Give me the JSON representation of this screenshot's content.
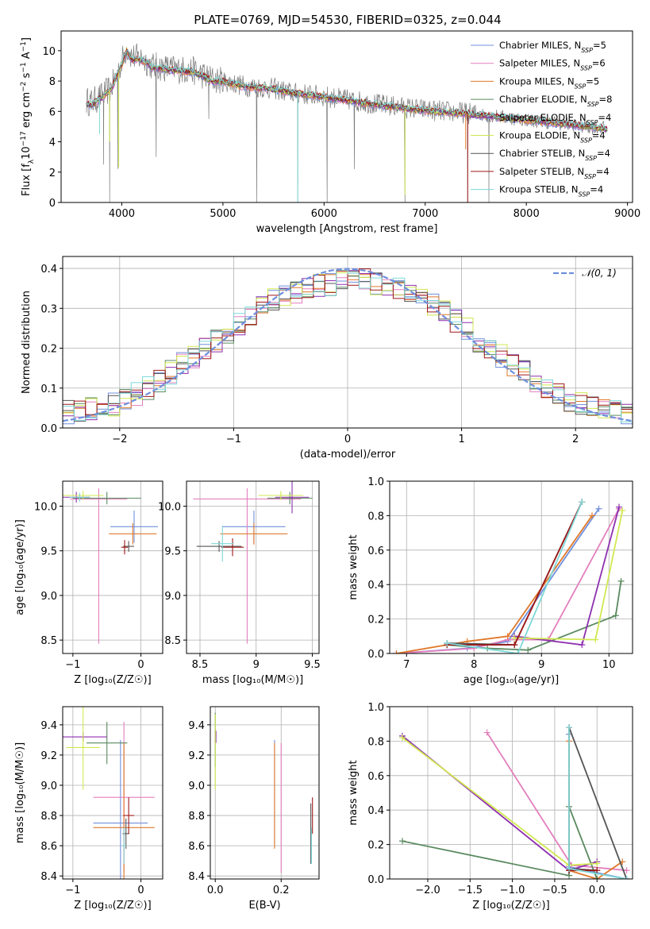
{
  "figure": {
    "title": "PLATE=0769, MJD=54530, FIBERID=0325, z=0.044"
  },
  "colors": {
    "Chabrier MILES": "#6f8fdc",
    "Salpeter MILES": "#e37fbd",
    "Kroupa MILES": "#e0782a",
    "Chabrier ELODIE": "#5a8a5f",
    "Salpeter ELODIE": "#8e2fb0",
    "Kroupa ELODIE": "#d1e850",
    "Chabrier STELIB": "#555555",
    "Salpeter STELIB": "#a01818",
    "Kroupa STELIB": "#7ed8d8",
    "normal": "#6f8fdc"
  },
  "chart_data": [
    {
      "id": "spectrum",
      "type": "line",
      "xlabel": "wavelength [Angstrom, rest frame]",
      "ylabel_parts": [
        "Flux [f",
        "λ",
        "10",
        "−17",
        " erg cm",
        "−2",
        " s",
        "−1",
        " A",
        "−1",
        "]"
      ],
      "xlim": [
        3400,
        9050
      ],
      "ylim": [
        0,
        11.3
      ],
      "xticks": [
        4000,
        5000,
        6000,
        7000,
        8000,
        9000
      ],
      "yticks": [
        0,
        2,
        4,
        6,
        8,
        10
      ],
      "legend_location": "top-right",
      "legend": [
        {
          "base": "Chabrier MILES, N",
          "sub": "SSP",
          "tail": "=5"
        },
        {
          "base": "Salpeter MILES, N",
          "sub": "SSP",
          "tail": "=6"
        },
        {
          "base": "Kroupa MILES, N",
          "sub": "SSP",
          "tail": "=5"
        },
        {
          "base": "Chabrier ELODIE, N",
          "sub": "SSP",
          "tail": "=8"
        },
        {
          "base": "Salpeter ELODIE, N",
          "sub": "SSP",
          "tail": "=4"
        },
        {
          "base": "Kroupa ELODIE, N",
          "sub": "SSP",
          "tail": "=4"
        },
        {
          "base": "Chabrier STELIB, N",
          "sub": "SSP",
          "tail": "=4"
        },
        {
          "base": "Salpeter STELIB, N",
          "sub": "SSP",
          "tail": "=4"
        },
        {
          "base": "Kroupa STELIB, N",
          "sub": "SSP",
          "tail": "=4"
        }
      ],
      "data_trend": {
        "x": [
          3650,
          3700,
          3800,
          3900,
          4000,
          4050,
          4100,
          4200,
          4300,
          4500,
          4700,
          4800,
          4900,
          5000,
          5200,
          5500,
          5700,
          6000,
          6300,
          6600,
          7000,
          7400,
          7800,
          8200,
          8600,
          8800
        ],
        "y": [
          6.7,
          6.6,
          7.0,
          7.6,
          9.3,
          10.2,
          9.6,
          9.5,
          9.0,
          8.8,
          8.7,
          8.4,
          8.1,
          8.0,
          7.7,
          7.5,
          7.2,
          7.0,
          6.7,
          6.4,
          6.1,
          5.9,
          5.6,
          5.3,
          5.0,
          4.9
        ]
      },
      "data_drops": [
        {
          "x": 3820,
          "y": 2.5
        },
        {
          "x": 3880,
          "y": 0.0
        },
        {
          "x": 3960,
          "y": 2.2
        },
        {
          "x": 4340,
          "y": 3.0
        },
        {
          "x": 4860,
          "y": 5.5
        },
        {
          "x": 5335,
          "y": 0.0
        },
        {
          "x": 5740,
          "y": 0.0
        },
        {
          "x": 6030,
          "y": 0.0
        },
        {
          "x": 6300,
          "y": 2.2
        },
        {
          "x": 6800,
          "y": 0.0
        },
        {
          "x": 7420,
          "y": 0.0
        },
        {
          "x": 7630,
          "y": 0.0
        }
      ],
      "model_trend": {
        "x": [
          3650,
          3700,
          3800,
          3900,
          4000,
          4050,
          4100,
          4200,
          4300,
          4500,
          4700,
          4800,
          4900,
          5000,
          5200,
          5500,
          5700,
          6000,
          6300,
          6600,
          7000,
          7400,
          7800,
          8200,
          8600,
          8800
        ],
        "y": [
          6.5,
          6.4,
          6.9,
          7.5,
          9.1,
          10.0,
          9.4,
          9.4,
          8.9,
          8.7,
          8.6,
          8.3,
          8.0,
          7.95,
          7.65,
          7.45,
          7.2,
          6.95,
          6.65,
          6.35,
          6.05,
          5.85,
          5.55,
          5.3,
          5.0,
          4.85
        ]
      }
    },
    {
      "id": "residuals",
      "type": "line",
      "xlabel": "(data-model)/error",
      "ylabel": "Normed distribution",
      "xlim": [
        -2.5,
        2.5
      ],
      "ylim": [
        0,
        0.43
      ],
      "xticks": [
        -2,
        -1,
        0,
        1,
        2
      ],
      "yticks": [
        0.0,
        0.1,
        0.2,
        0.3,
        0.4
      ],
      "grid": true,
      "legend_location": "top-right",
      "normal_label": "𝒩(0, 1)",
      "bin_start": -2.5,
      "bin_width": 0.1,
      "hist_base": [
        0.04,
        0.045,
        0.05,
        0.055,
        0.06,
        0.07,
        0.085,
        0.1,
        0.12,
        0.14,
        0.16,
        0.18,
        0.2,
        0.22,
        0.24,
        0.26,
        0.28,
        0.3,
        0.32,
        0.33,
        0.34,
        0.35,
        0.36,
        0.36,
        0.37,
        0.37,
        0.37,
        0.36,
        0.36,
        0.35,
        0.34,
        0.33,
        0.31,
        0.29,
        0.27,
        0.25,
        0.22,
        0.2,
        0.18,
        0.16,
        0.14,
        0.12,
        0.1,
        0.085,
        0.07,
        0.06,
        0.05,
        0.045,
        0.04,
        0.035
      ]
    },
    {
      "id": "age_vs_Z",
      "type": "scatter",
      "xlabel": "Z [log₁₀(Z/Z☉)]",
      "ylabel": "age  [log₁₀(age/yr)]",
      "xlim": [
        -1.15,
        0.32
      ],
      "ylim": [
        8.35,
        10.28
      ],
      "xticks": [
        -1,
        0
      ],
      "yticks": [
        8.5,
        9.0,
        9.5,
        10.0
      ],
      "grid": true,
      "points": [
        {
          "series": "Chabrier MILES",
          "x": -0.1,
          "y": 9.77,
          "xerr": 0.35,
          "yerr": 0.18
        },
        {
          "series": "Salpeter MILES",
          "x": -0.62,
          "y": 10.08,
          "xerr": 0.42,
          "yerr": [
            0.12,
            1.62
          ]
        },
        {
          "series": "Kroupa MILES",
          "x": -0.12,
          "y": 9.69,
          "xerr": 0.35,
          "yerr": 0.12
        },
        {
          "series": "Chabrier ELODIE",
          "x": -0.5,
          "y": 10.09,
          "xerr": 0.5,
          "yerr": 0.07
        },
        {
          "series": "Salpeter ELODIE",
          "x": -0.95,
          "y": 10.1,
          "xerr": 0.2,
          "yerr": 0.06
        },
        {
          "series": "Kroupa ELODIE",
          "x": -0.85,
          "y": 10.12,
          "xerr": 0.3,
          "yerr": 0.05
        },
        {
          "series": "Chabrier STELIB",
          "x": -0.18,
          "y": 9.55,
          "xerr": 0.08,
          "yerr": 0.06
        },
        {
          "series": "Salpeter STELIB",
          "x": -0.24,
          "y": 9.54,
          "xerr": 0.05,
          "yerr": 0.08
        },
        {
          "series": "Kroupa STELIB",
          "x": -0.9,
          "y": 10.1,
          "xerr": 0.15,
          "yerr": 0.05
        }
      ]
    },
    {
      "id": "age_vs_mass",
      "type": "scatter",
      "xlabel": "mass [log₁₀(M/M☉)]",
      "ylabel": "",
      "xlim": [
        8.38,
        9.56
      ],
      "ylim": [
        8.35,
        10.28
      ],
      "xticks": [
        8.5,
        9.0,
        9.5
      ],
      "yticks": [
        8.5,
        9.0,
        9.5,
        10.0
      ],
      "grid": true,
      "points": [
        {
          "series": "Chabrier MILES",
          "x": 8.98,
          "y": 9.77,
          "xerr": 0.28,
          "yerr": 0.18
        },
        {
          "series": "Salpeter MILES",
          "x": 8.92,
          "y": 10.08,
          "xerr": 0.48,
          "yerr": [
            0.12,
            1.62
          ]
        },
        {
          "series": "Kroupa MILES",
          "x": 8.98,
          "y": 9.69,
          "xerr": 0.3,
          "yerr": 0.12
        },
        {
          "series": "Chabrier ELODIE",
          "x": 9.3,
          "y": 10.09,
          "xerr": 0.2,
          "yerr": 0.07
        },
        {
          "series": "Salpeter ELODIE",
          "x": 9.32,
          "y": 10.1,
          "xerr": 0.15,
          "yerr": 0.18
        },
        {
          "series": "Kroupa ELODIE",
          "x": 9.22,
          "y": 10.12,
          "xerr": 0.2,
          "yerr": 0.05
        },
        {
          "series": "Chabrier STELIB",
          "x": 8.67,
          "y": 9.55,
          "xerr": 0.2,
          "yerr": 0.06
        },
        {
          "series": "Salpeter STELIB",
          "x": 8.79,
          "y": 9.54,
          "xerr": 0.1,
          "yerr": 0.1
        },
        {
          "series": "Kroupa STELIB",
          "x": 8.7,
          "y": 9.58,
          "xerr": 0.1,
          "yerr": 0.2
        }
      ]
    },
    {
      "id": "weight_vs_age",
      "type": "line",
      "xlabel": "age  [log₁₀(age/yr)]",
      "ylabel": "mass weight",
      "xlim": [
        6.75,
        10.35
      ],
      "ylim": [
        0,
        1
      ],
      "xticks": [
        7,
        8,
        9,
        10
      ],
      "yticks": [
        0.0,
        0.2,
        0.4,
        0.6,
        0.8,
        1.0
      ],
      "grid": true,
      "series": [
        {
          "name": "Chabrier MILES",
          "x": [
            6.85,
            7.9,
            8.5,
            9.85
          ],
          "y": [
            0.0,
            0.03,
            0.07,
            0.84
          ]
        },
        {
          "name": "Salpeter MILES",
          "x": [
            6.85,
            8.0,
            8.5,
            9.1,
            10.15
          ],
          "y": [
            0.0,
            0.03,
            0.08,
            0.08,
            0.84
          ]
        },
        {
          "name": "Kroupa MILES",
          "x": [
            6.85,
            7.9,
            8.5,
            9.75
          ],
          "y": [
            0.0,
            0.07,
            0.1,
            0.8
          ]
        },
        {
          "name": "Chabrier ELODIE",
          "x": [
            7.6,
            8.2,
            8.8,
            10.1,
            10.18
          ],
          "y": [
            0.05,
            0.03,
            0.02,
            0.22,
            0.42
          ]
        },
        {
          "name": "Salpeter ELODIE",
          "x": [
            8.6,
            9.6,
            10.15
          ],
          "y": [
            0.1,
            0.05,
            0.85
          ]
        },
        {
          "name": "Kroupa ELODIE",
          "x": [
            8.6,
            9.8,
            10.2
          ],
          "y": [
            0.09,
            0.08,
            0.83
          ]
        },
        {
          "name": "Chabrier STELIB",
          "x": [
            7.6,
            8.6,
            9.6
          ],
          "y": [
            0.06,
            0.05,
            0.88
          ]
        },
        {
          "name": "Salpeter STELIB",
          "x": [
            7.6,
            8.6,
            9.6
          ],
          "y": [
            0.05,
            0.05,
            0.88
          ]
        },
        {
          "name": "Kroupa STELIB",
          "x": [
            7.6,
            8.65,
            9.6
          ],
          "y": [
            0.06,
            0.0,
            0.88
          ]
        }
      ]
    },
    {
      "id": "mass_vs_Z",
      "type": "scatter",
      "xlabel": "Z [log₁₀(Z/Z☉)]",
      "ylabel": "mass [log₁₀(M/M☉)]",
      "xlim": [
        -1.15,
        0.32
      ],
      "ylim": [
        8.38,
        9.52
      ],
      "xticks": [
        -1,
        0
      ],
      "yticks": [
        8.4,
        8.6,
        8.8,
        9.0,
        9.2,
        9.4
      ],
      "grid": true,
      "points": [
        {
          "series": "Chabrier MILES",
          "x": -0.3,
          "y": 8.75,
          "xerr": 0.4,
          "yerr": 0.55
        },
        {
          "series": "Salpeter MILES",
          "x": -0.25,
          "y": 8.92,
          "xerr": 0.45,
          "yerr": 0.5
        },
        {
          "series": "Kroupa MILES",
          "x": -0.25,
          "y": 8.72,
          "xerr": 0.45,
          "yerr": 0.56
        },
        {
          "series": "Chabrier ELODIE",
          "x": -0.5,
          "y": 9.28,
          "xerr": 0.3,
          "yerr": 0.14
        },
        {
          "series": "Salpeter ELODIE",
          "x": -0.85,
          "y": 9.32,
          "xerr": 0.35,
          "yerr": 0.03
        },
        {
          "series": "Kroupa ELODIE",
          "x": -0.85,
          "y": 9.25,
          "xerr": 0.25,
          "yerr": 0.28
        },
        {
          "series": "Chabrier STELIB",
          "x": -0.22,
          "y": 8.68,
          "xerr": 0.05,
          "yerr": 0.1
        },
        {
          "series": "Salpeter STELIB",
          "x": -0.18,
          "y": 8.8,
          "xerr": 0.08,
          "yerr": 0.12
        },
        {
          "series": "Kroupa STELIB",
          "x": -0.25,
          "y": 8.6,
          "xerr": 0.03,
          "yerr": 0.12
        }
      ]
    },
    {
      "id": "mass_vs_EBV",
      "type": "scatter",
      "xlabel": "E(B-V)",
      "ylabel": "",
      "xlim": [
        -0.015,
        0.315
      ],
      "ylim": [
        8.38,
        9.52
      ],
      "xticks": [
        0.0,
        0.2
      ],
      "yticks": [
        8.4,
        8.6,
        8.8,
        9.0,
        9.2,
        9.4
      ],
      "grid": true,
      "points": [
        {
          "series": "Chabrier MILES",
          "x": 0.18,
          "y": 8.95,
          "xerr": 0.0,
          "yerr": 0.35
        },
        {
          "series": "Salpeter MILES",
          "x": 0.2,
          "y": 8.85,
          "xerr": 0.0,
          "yerr": 0.43
        },
        {
          "series": "Kroupa MILES",
          "x": 0.18,
          "y": 8.93,
          "xerr": 0.0,
          "yerr": 0.35
        },
        {
          "series": "Chabrier ELODIE",
          "x": 0.0,
          "y": 9.3,
          "xerr": 0.0,
          "yerr": 0.18
        },
        {
          "series": "Salpeter ELODIE",
          "x": 0.002,
          "y": 9.32,
          "xerr": 0.0,
          "yerr": 0.04
        },
        {
          "series": "Kroupa ELODIE",
          "x": 0.0,
          "y": 9.22,
          "xerr": 0.0,
          "yerr": 0.25
        },
        {
          "series": "Chabrier STELIB",
          "x": 0.29,
          "y": 8.68,
          "xerr": 0.0,
          "yerr": 0.2
        },
        {
          "series": "Salpeter STELIB",
          "x": 0.295,
          "y": 8.8,
          "xerr": 0.0,
          "yerr": 0.12
        },
        {
          "series": "Kroupa STELIB",
          "x": 0.292,
          "y": 8.6,
          "xerr": 0.0,
          "yerr": 0.12
        }
      ]
    },
    {
      "id": "weight_vs_Z",
      "type": "line",
      "xlabel": "Z [log₁₀(Z/Z☉)]",
      "ylabel": "mass weight",
      "xlim": [
        -2.45,
        0.42
      ],
      "ylim": [
        0,
        1
      ],
      "xticks": [
        -2.0,
        -1.5,
        -1.0,
        -0.5,
        0.0
      ],
      "yticks": [
        0.0,
        0.2,
        0.4,
        0.6,
        0.8,
        1.0
      ],
      "grid": true,
      "series": [
        {
          "name": "Chabrier MILES",
          "x": [
            0.35,
            -0.33,
            -0.33
          ],
          "y": [
            0.0,
            0.07,
            0.84
          ]
        },
        {
          "name": "Salpeter MILES",
          "x": [
            0.35,
            -0.3,
            -1.3
          ],
          "y": [
            0.05,
            0.08,
            0.85
          ]
        },
        {
          "name": "Kroupa MILES",
          "x": [
            0.3,
            0.0,
            -0.33,
            -0.33
          ],
          "y": [
            0.1,
            0.0,
            0.05,
            0.8
          ]
        },
        {
          "name": "Chabrier ELODIE",
          "x": [
            -2.3,
            -0.33,
            -0.33,
            0.0
          ],
          "y": [
            0.22,
            0.02,
            0.42,
            0.0
          ]
        },
        {
          "name": "Salpeter ELODIE",
          "x": [
            -2.3,
            -0.33,
            0.0
          ],
          "y": [
            0.83,
            0.05,
            0.1
          ]
        },
        {
          "name": "Kroupa ELODIE",
          "x": [
            -2.3,
            -0.33,
            0.0
          ],
          "y": [
            0.82,
            0.08,
            0.09
          ]
        },
        {
          "name": "Chabrier STELIB",
          "x": [
            0.0,
            -0.33,
            -0.33,
            0.35
          ],
          "y": [
            0.05,
            0.06,
            0.88,
            0.0
          ]
        },
        {
          "name": "Salpeter STELIB",
          "x": [
            0.0,
            -0.33,
            -0.33
          ],
          "y": [
            0.05,
            0.05,
            0.88
          ]
        },
        {
          "name": "Kroupa STELIB",
          "x": [
            0.35,
            -0.33,
            -0.33
          ],
          "y": [
            0.0,
            0.06,
            0.88
          ]
        }
      ]
    }
  ]
}
